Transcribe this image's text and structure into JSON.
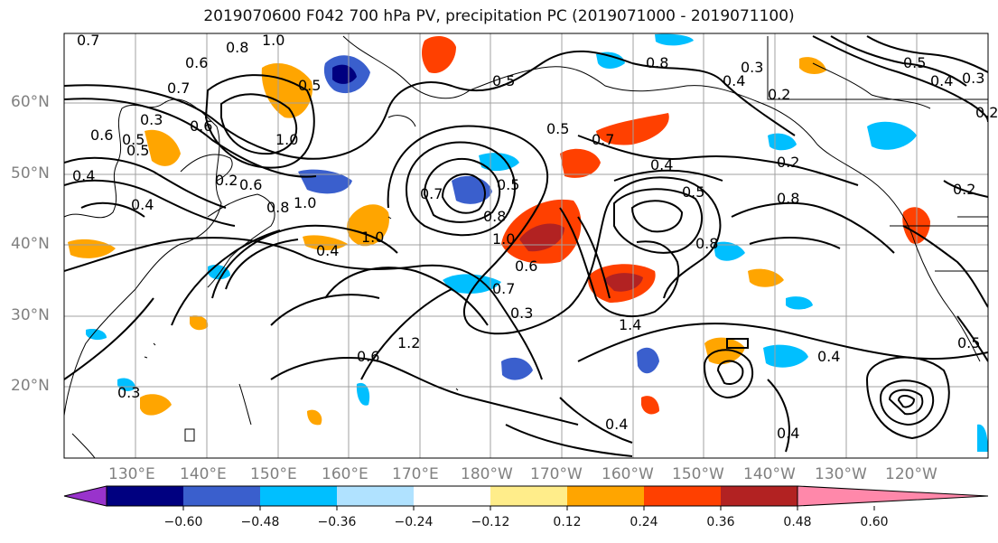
{
  "title": "2019070600 F042 700 hPa PV, precipitation PC (2019071000 - 2019071100)",
  "lat_labels": [
    "60°N",
    "50°N",
    "40°N",
    "30°N",
    "20°N"
  ],
  "lon_labels": [
    "130°E",
    "140°E",
    "150°E",
    "160°E",
    "170°E",
    "180°W",
    "170°W",
    "160°W",
    "150°W",
    "140°W",
    "130°W",
    "120°W"
  ],
  "colorbar": {
    "colors": [
      "#9933cc",
      "#000080",
      "#3a5fcd",
      "#00bfff",
      "#b0e2ff",
      "#ffffff",
      "#ffed8a",
      "#ffa500",
      "#ff4000",
      "#b22222",
      "#ff88aa"
    ],
    "tick_labels": [
      "−0.60",
      "−0.48",
      "−0.36",
      "−0.24",
      "−0.12",
      "0.12",
      "0.24",
      "0.36",
      "0.48",
      "0.60"
    ]
  },
  "contour_labels": [
    "0.7",
    "0.6",
    "1.0",
    "0.8",
    "0.5",
    "0.7",
    "0.3",
    "0.6",
    "0.5",
    "0.4",
    "1.0",
    "0.6",
    "0.5",
    "0.4",
    "0.2",
    "0.6",
    "0.8",
    "1.0",
    "0.7",
    "0.5",
    "0.8",
    "1.0",
    "1.0",
    "0.6",
    "0.4",
    "0.3",
    "0.6",
    "0.7",
    "1.4",
    "1.2",
    "0.8",
    "0.8",
    "0.5",
    "0.4",
    "0.7",
    "0.5",
    "0.5",
    "0.8",
    "0.4",
    "0.3",
    "0.5",
    "0.4",
    "0.3",
    "0.2",
    "0.2",
    "0.2",
    "0.2",
    "0.4",
    "0.5",
    "0.4",
    "0.4",
    "0.3"
  ]
}
